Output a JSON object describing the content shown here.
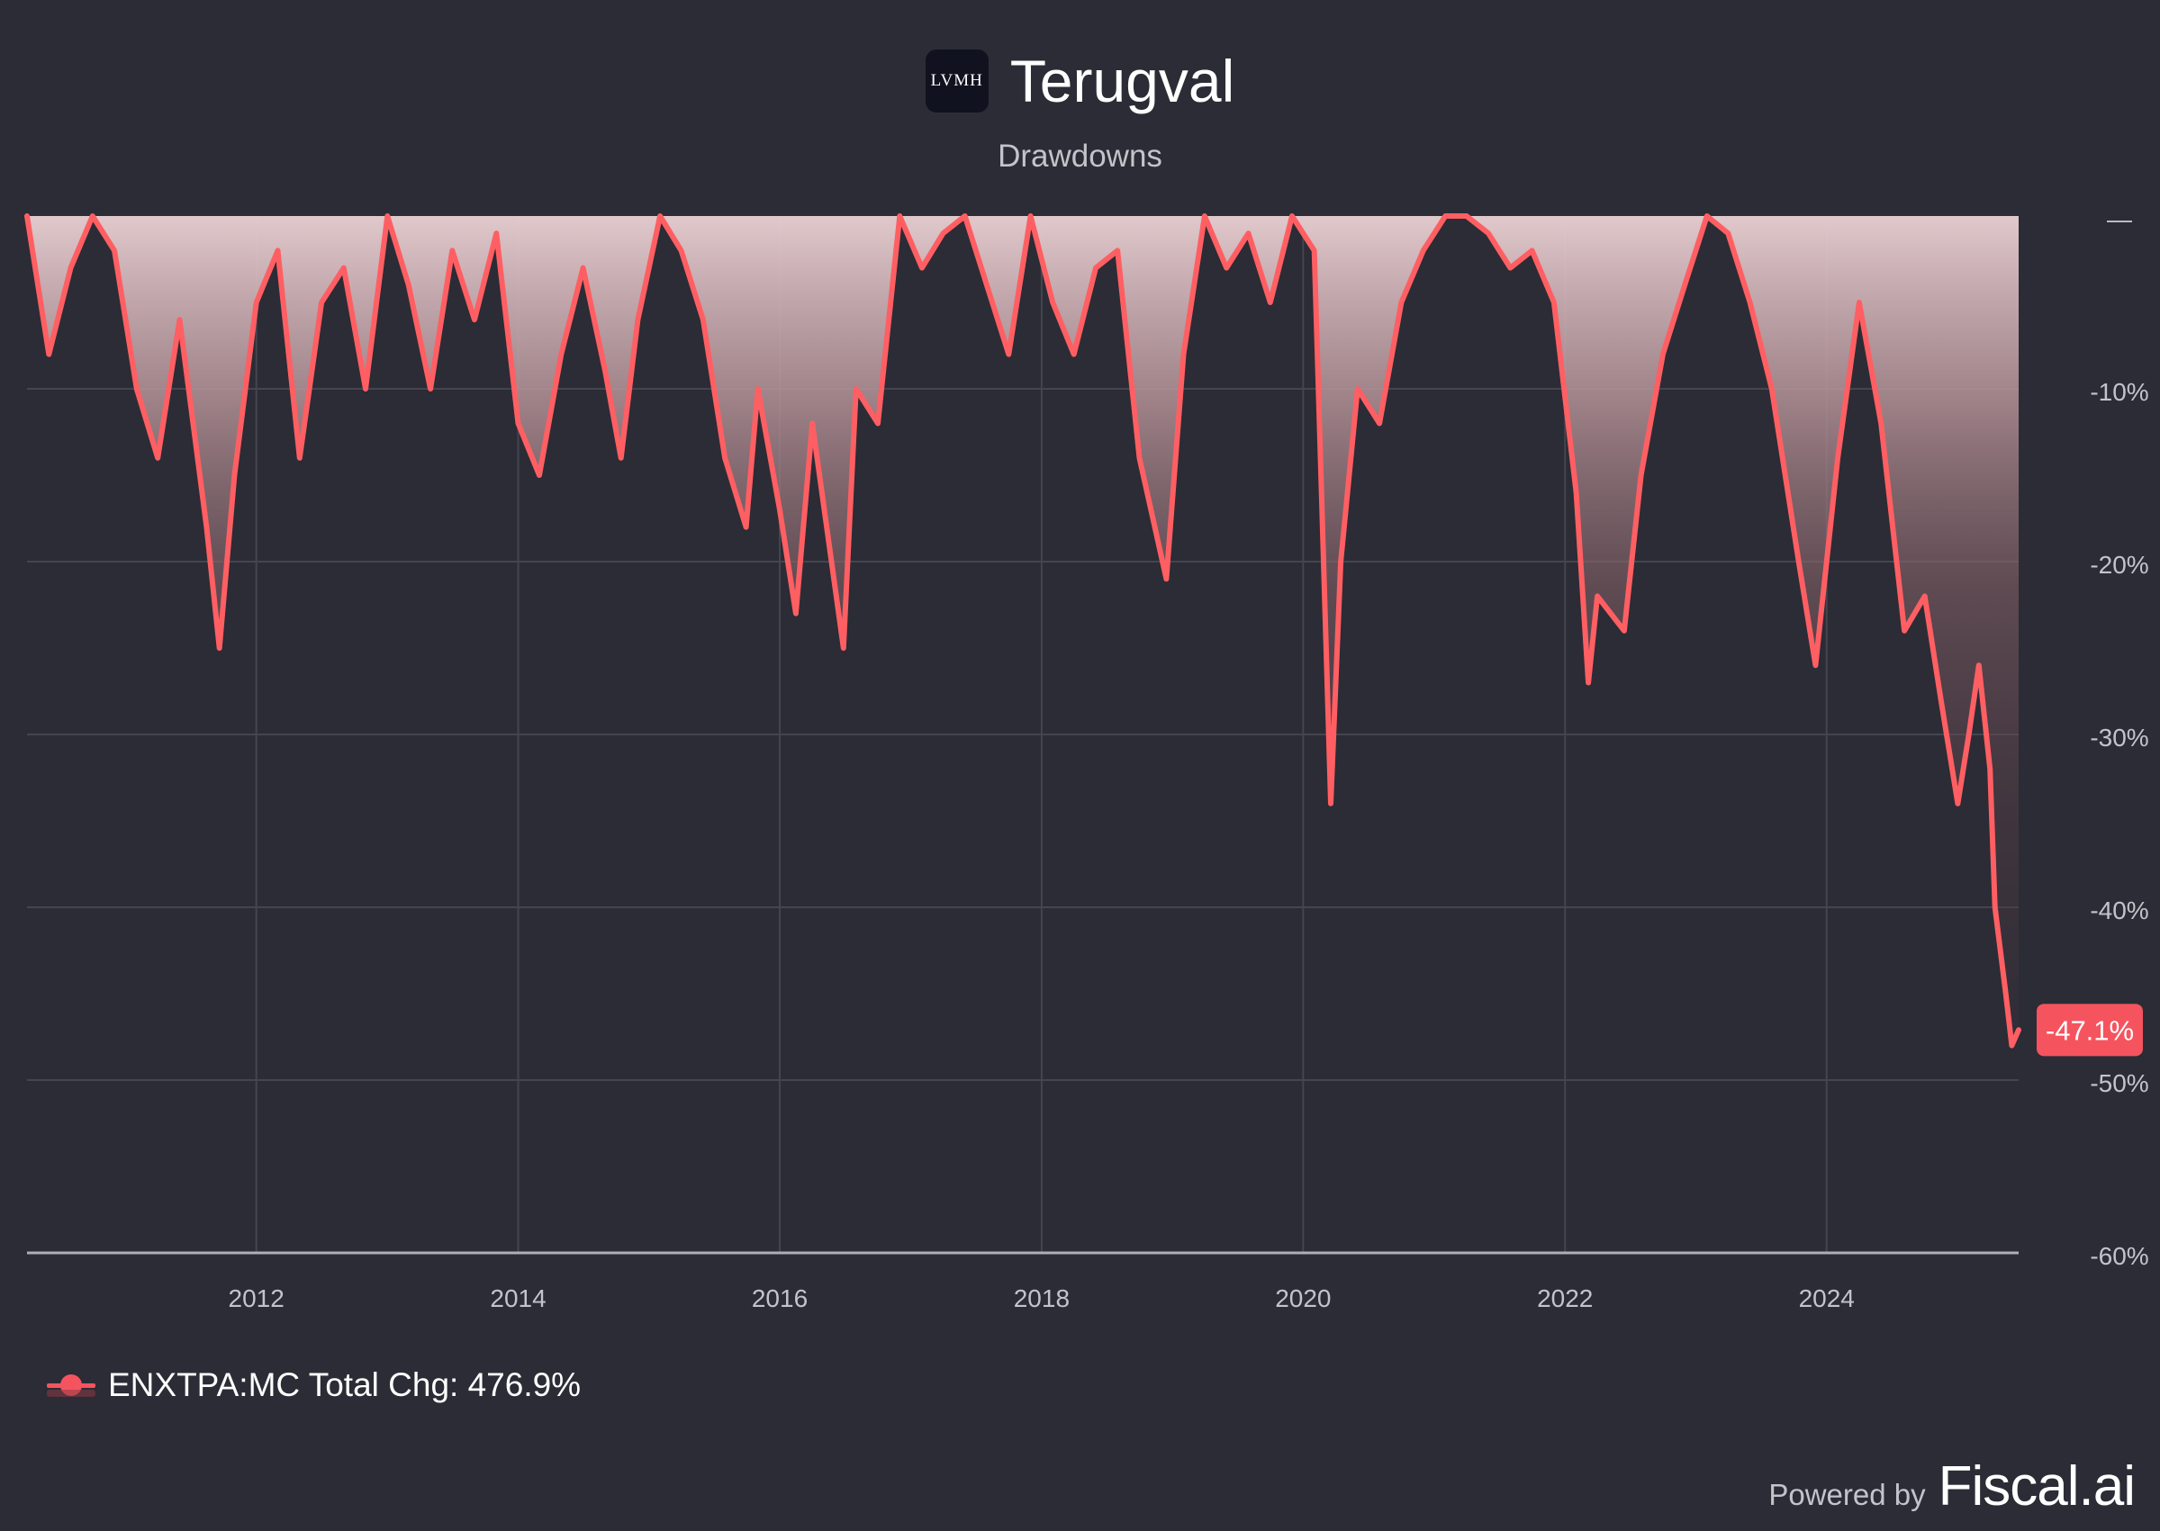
{
  "header": {
    "logo_text": "LVMH",
    "title": "Terugval",
    "subtitle": "Drawdowns"
  },
  "legend": {
    "label": "ENXTPA:MC Total Chg: 476.9%"
  },
  "branding": {
    "powered_by": "Powered by",
    "name": "Fiscal.ai"
  },
  "colors": {
    "background": "#2b2c35",
    "line": "#ff5f63",
    "grid": "#44454f",
    "axis_text": "#c3c4ca",
    "current_badge": "#f5545f"
  },
  "chart_data": {
    "type": "area",
    "title": "Terugval",
    "subtitle": "Drawdowns",
    "series": [
      {
        "name": "ENXTPA:MC",
        "total_change": "476.9%",
        "current_value": -47.1,
        "current_label": "-47.1%",
        "x": [
          "2010-04-01",
          "2010-06-01",
          "2010-08-01",
          "2010-10-01",
          "2010-12-01",
          "2011-02-01",
          "2011-04-01",
          "2011-06-01",
          "2011-08-15",
          "2011-09-20",
          "2011-11-01",
          "2012-01-01",
          "2012-03-01",
          "2012-05-01",
          "2012-07-01",
          "2012-09-01",
          "2012-11-01",
          "2013-01-01",
          "2013-03-01",
          "2013-05-01",
          "2013-07-01",
          "2013-09-01",
          "2013-11-01",
          "2014-01-01",
          "2014-03-01",
          "2014-05-01",
          "2014-07-01",
          "2014-09-01",
          "2014-10-15",
          "2014-12-01",
          "2015-02-01",
          "2015-04-01",
          "2015-06-01",
          "2015-08-01",
          "2015-09-29",
          "2015-11-01",
          "2016-01-01",
          "2016-02-15",
          "2016-04-01",
          "2016-06-27",
          "2016-08-01",
          "2016-10-01",
          "2016-12-01",
          "2017-02-01",
          "2017-04-01",
          "2017-06-01",
          "2017-08-01",
          "2017-10-01",
          "2017-12-01",
          "2018-02-01",
          "2018-04-01",
          "2018-06-01",
          "2018-08-01",
          "2018-10-01",
          "2018-12-15",
          "2019-02-01",
          "2019-04-01",
          "2019-06-01",
          "2019-08-01",
          "2019-10-01",
          "2019-12-01",
          "2020-02-01",
          "2020-03-18",
          "2020-04-15",
          "2020-06-01",
          "2020-08-01",
          "2020-10-01",
          "2020-12-01",
          "2021-02-01",
          "2021-04-01",
          "2021-06-01",
          "2021-08-01",
          "2021-10-01",
          "2021-12-01",
          "2022-02-01",
          "2022-03-07",
          "2022-04-01",
          "2022-06-15",
          "2022-08-01",
          "2022-10-01",
          "2022-12-01",
          "2023-02-01",
          "2023-04-01",
          "2023-06-01",
          "2023-08-01",
          "2023-10-15",
          "2023-12-01",
          "2024-02-01",
          "2024-04-01",
          "2024-06-01",
          "2024-08-05",
          "2024-10-01",
          "2024-11-15",
          "2025-01-01",
          "2025-02-01",
          "2025-03-01",
          "2025-04-01",
          "2025-04-15",
          "2025-05-15",
          "2025-06-01",
          "2025-06-20"
        ],
        "y": [
          0,
          -8,
          -3,
          0,
          -2,
          -10,
          -14,
          -6,
          -18,
          -25,
          -15,
          -5,
          -2,
          -14,
          -5,
          -3,
          -10,
          0,
          -4,
          -10,
          -2,
          -6,
          -1,
          -12,
          -15,
          -8,
          -3,
          -9,
          -14,
          -6,
          0,
          -2,
          -6,
          -14,
          -18,
          -10,
          -17,
          -23,
          -12,
          -25,
          -10,
          -12,
          0,
          -3,
          -1,
          0,
          -4,
          -8,
          0,
          -5,
          -8,
          -3,
          -2,
          -14,
          -21,
          -8,
          0,
          -3,
          -1,
          -5,
          0,
          -2,
          -34,
          -20,
          -10,
          -12,
          -5,
          -2,
          0,
          0,
          -1,
          -3,
          -2,
          -5,
          -16,
          -27,
          -22,
          -24,
          -15,
          -8,
          -4,
          0,
          -1,
          -5,
          -10,
          -20,
          -26,
          -14,
          -5,
          -12,
          -24,
          -22,
          -28,
          -34,
          -30,
          -26,
          -32,
          -40,
          -45,
          -48,
          -47.1
        ]
      }
    ],
    "x_ticks": [
      "2012",
      "2014",
      "2016",
      "2018",
      "2020",
      "2022",
      "2024"
    ],
    "x_tick_years": [
      2012,
      2014,
      2016,
      2018,
      2020,
      2022,
      2024
    ],
    "x_range": [
      "2010-04-01",
      "2025-06-20"
    ],
    "ylim": [
      -60,
      0
    ],
    "y_ticks": [
      0,
      -10,
      -20,
      -30,
      -40,
      -50,
      -60
    ],
    "y_tick_labels": [
      "—",
      "-10%",
      "-20%",
      "-30%",
      "-40%",
      "-50%",
      "-60%"
    ],
    "grid": true,
    "legend_position": "bottom-left",
    "y_axis_side": "right"
  }
}
